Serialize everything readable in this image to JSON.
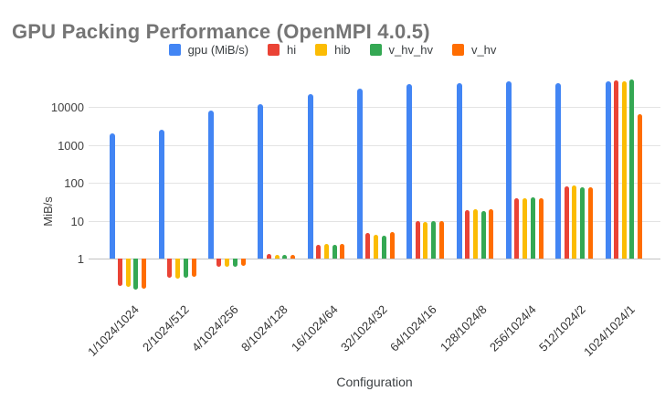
{
  "title": "GPU Packing Performance (OpenMPI 4.0.5)",
  "chart_data": {
    "type": "bar",
    "title": "GPU Packing Performance (OpenMPI 4.0.5)",
    "xlabel": "Configuration",
    "ylabel": "MiB/s",
    "y_scale": "log",
    "y_ticks": [
      1,
      10,
      100,
      1000,
      10000
    ],
    "ylim": [
      0.1,
      60000
    ],
    "grid": "horizontal-only",
    "legend_position": "top",
    "categories": [
      "1/1024/1024",
      "2/1024/512",
      "4/1024/256",
      "8/1024/128",
      "16/1024/64",
      "32/1024/32",
      "64/1024/16",
      "128/1024/8",
      "256/1024/4",
      "512/1024/2",
      "1024/1024/1"
    ],
    "series": [
      {
        "name": "gpu (MiB/s)",
        "color": "#4285F4",
        "values": [
          2000,
          2500,
          7800,
          12000,
          22000,
          30000,
          39000,
          42000,
          46000,
          42000,
          47000
        ]
      },
      {
        "name": "hi",
        "color": "#EA4335",
        "values": [
          0.19,
          0.31,
          0.62,
          1.3,
          2.3,
          4.7,
          9.7,
          19,
          38,
          78,
          50000
        ]
      },
      {
        "name": "hib",
        "color": "#FBBC04",
        "values": [
          0.18,
          0.3,
          0.6,
          1.25,
          2.4,
          4.3,
          9.4,
          20,
          39,
          85,
          46000
        ]
      },
      {
        "name": "v_hv_hv",
        "color": "#34A853",
        "values": [
          0.15,
          0.31,
          0.6,
          1.25,
          2.3,
          4.1,
          9.7,
          18,
          42,
          74,
          53000
        ]
      },
      {
        "name": "v_hv",
        "color": "#FF6D01",
        "values": [
          0.16,
          0.33,
          0.65,
          1.25,
          2.4,
          5.0,
          10,
          20,
          39,
          77,
          6500
        ]
      }
    ]
  }
}
